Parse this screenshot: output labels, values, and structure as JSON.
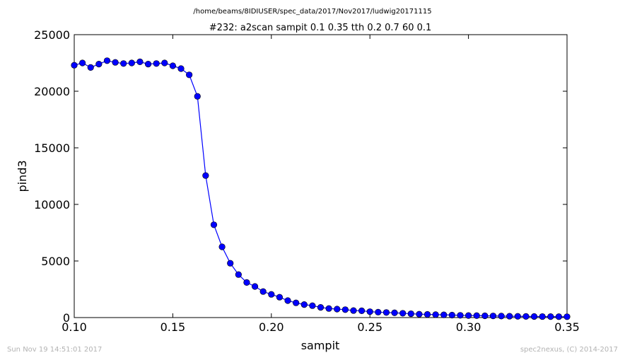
{
  "header": {
    "file_path": "/home/beams/8IDIUSER/spec_data/2017/Nov2017/ludwig20171115"
  },
  "footer": {
    "timestamp": "Sun Nov 19 14:51:01 2017",
    "credit": "spec2nexus, (C) 2014-2017"
  },
  "chart_data": {
    "type": "line",
    "title": "#232: a2scan  sampit 0.1 0.35  tth 0.2 0.7  60 0.1",
    "xlabel": "sampit",
    "ylabel": "pind3",
    "xlim": [
      0.1,
      0.35
    ],
    "ylim": [
      0,
      25000
    ],
    "xticks": [
      "0.10",
      "0.15",
      "0.20",
      "0.25",
      "0.30",
      "0.35"
    ],
    "yticks": [
      "0",
      "5000",
      "10000",
      "15000",
      "20000",
      "25000"
    ],
    "grid": false,
    "legend": "none",
    "color": "#0000ff",
    "series": [
      {
        "x": [
          0.1,
          0.104167,
          0.108333,
          0.1125,
          0.116667,
          0.120833,
          0.125,
          0.129167,
          0.133333,
          0.1375,
          0.141667,
          0.145833,
          0.15,
          0.154167,
          0.158333,
          0.1625,
          0.166667,
          0.170833,
          0.175,
          0.179167,
          0.183333,
          0.1875,
          0.191667,
          0.195833,
          0.2,
          0.204167,
          0.208333,
          0.2125,
          0.216667,
          0.220833,
          0.225,
          0.229167,
          0.233333,
          0.2375,
          0.241667,
          0.245833,
          0.25,
          0.254167,
          0.258333,
          0.2625,
          0.266667,
          0.270833,
          0.275,
          0.279167,
          0.283333,
          0.2875,
          0.291667,
          0.295833,
          0.3,
          0.304167,
          0.308333,
          0.3125,
          0.316667,
          0.320833,
          0.325,
          0.329167,
          0.333333,
          0.3375,
          0.341667,
          0.345833,
          0.35
        ],
        "y": [
          22300,
          22500,
          22100,
          22400,
          22700,
          22550,
          22450,
          22500,
          22600,
          22400,
          22450,
          22500,
          22250,
          22000,
          21450,
          19550,
          12550,
          8200,
          6250,
          4800,
          3800,
          3100,
          2750,
          2300,
          2050,
          1800,
          1500,
          1300,
          1150,
          1050,
          900,
          800,
          750,
          700,
          620,
          600,
          520,
          480,
          450,
          420,
          380,
          340,
          300,
          280,
          260,
          240,
          220,
          200,
          180,
          170,
          155,
          145,
          135,
          120,
          110,
          100,
          95,
          90,
          85,
          80,
          75
        ]
      }
    ]
  }
}
